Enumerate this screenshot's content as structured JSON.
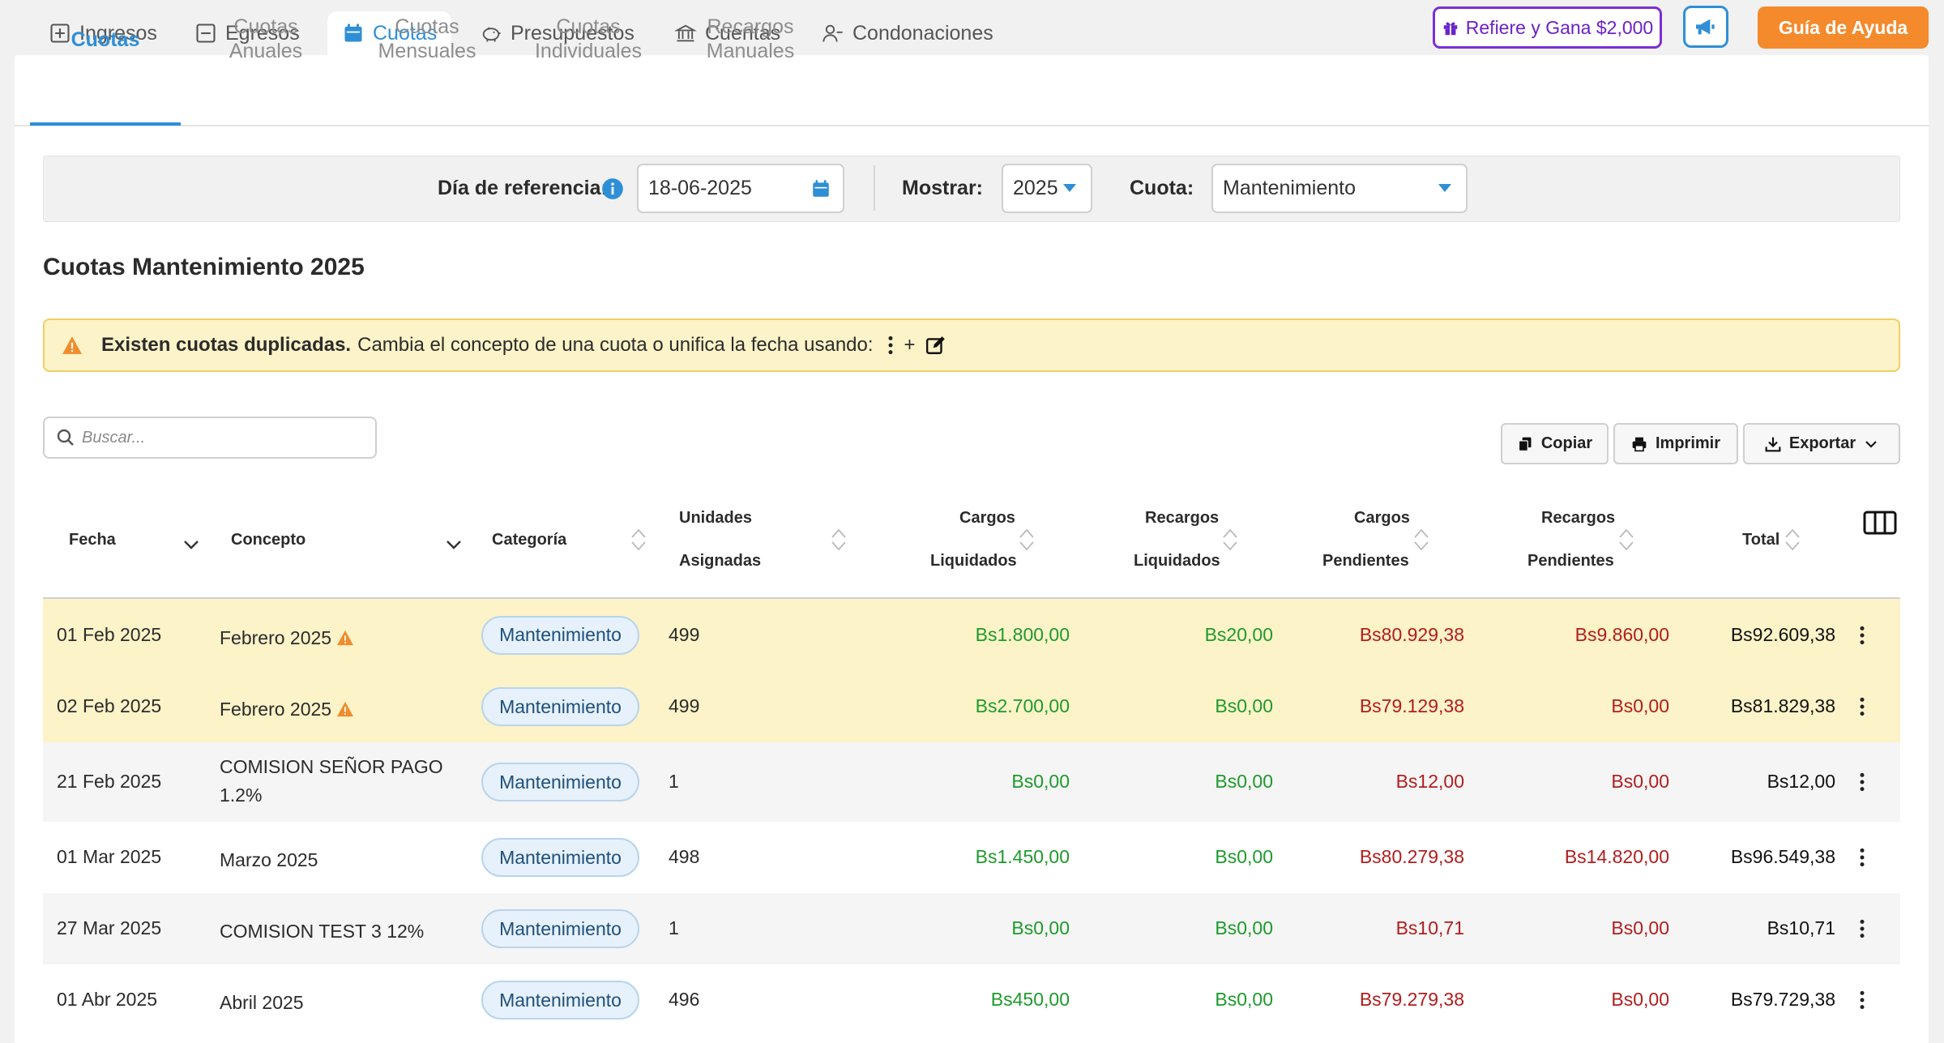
{
  "topnav": {
    "tabs": [
      {
        "label": "Ingresos",
        "icon": "plus-square-icon"
      },
      {
        "label": "Egresos",
        "icon": "minus-square-icon"
      },
      {
        "label": "Cuotas",
        "icon": "calendar-icon"
      },
      {
        "label": "Presupuestos",
        "icon": "piggy-bank-icon"
      },
      {
        "label": "Cuentas",
        "icon": "bank-icon"
      },
      {
        "label": "Condonaciones",
        "icon": "user-minus-icon"
      }
    ],
    "active_tab": "Cuotas",
    "refer_label": "Refiere y Gana $2,000",
    "guide_label": "Guía de Ayuda"
  },
  "subtabs": [
    {
      "line1": "Cuotas",
      "line2": ""
    },
    {
      "line1": "Cuotas",
      "line2": "Anuales"
    },
    {
      "line1": "Cuotas",
      "line2": "Mensuales"
    },
    {
      "line1": "Cuotas",
      "line2": "Individuales"
    },
    {
      "line1": "Recargos",
      "line2": "Manuales"
    }
  ],
  "filters": {
    "reference_label": "Día de referencia:",
    "reference_value": "18-06-2025",
    "show_label": "Mostrar:",
    "show_value": "2025",
    "cuota_label": "Cuota:",
    "cuota_value": "Mantenimiento"
  },
  "title": "Cuotas Mantenimiento 2025",
  "alert": {
    "bold": "Existen cuotas duplicadas.",
    "text": "Cambia el concepto de una cuota o unifica la fecha usando:",
    "plus": "+"
  },
  "search": {
    "placeholder": "Buscar..."
  },
  "actions": {
    "copy": "Copiar",
    "print": "Imprimir",
    "export": "Exportar"
  },
  "table": {
    "headers": {
      "fecha": "Fecha",
      "concepto": "Concepto",
      "categoria": "Categoría",
      "unidades_1": "Unidades",
      "unidades_2": "Asignadas",
      "cargos_liq_1": "Cargos",
      "cargos_liq_2": "Liquidados",
      "recargos_liq_1": "Recargos",
      "recargos_liq_2": "Liquidados",
      "cargos_pen_1": "Cargos",
      "cargos_pen_2": "Pendientes",
      "recargos_pen_1": "Recargos",
      "recargos_pen_2": "Pendientes",
      "total": "Total"
    },
    "rows": [
      {
        "fecha": "01 Feb 2025",
        "concepto": "Febrero 2025",
        "concepto2": "",
        "duplicate": true,
        "categoria": "Mantenimiento",
        "unidades": "499",
        "cargos_liq": "Bs1.800,00",
        "recargos_liq": "Bs20,00",
        "cargos_pen": "Bs80.929,38",
        "recargos_pen": "Bs9.860,00",
        "total": "Bs92.609,38"
      },
      {
        "fecha": "02 Feb 2025",
        "concepto": "Febrero 2025",
        "concepto2": "",
        "duplicate": true,
        "categoria": "Mantenimiento",
        "unidades": "499",
        "cargos_liq": "Bs2.700,00",
        "recargos_liq": "Bs0,00",
        "cargos_pen": "Bs79.129,38",
        "recargos_pen": "Bs0,00",
        "total": "Bs81.829,38"
      },
      {
        "fecha": "21 Feb 2025",
        "concepto": "COMISION SEÑOR PAGO",
        "concepto2": "1.2%",
        "duplicate": false,
        "categoria": "Mantenimiento",
        "unidades": "1",
        "cargos_liq": "Bs0,00",
        "recargos_liq": "Bs0,00",
        "cargos_pen": "Bs12,00",
        "recargos_pen": "Bs0,00",
        "total": "Bs12,00"
      },
      {
        "fecha": "01 Mar 2025",
        "concepto": "Marzo 2025",
        "concepto2": "",
        "duplicate": false,
        "categoria": "Mantenimiento",
        "unidades": "498",
        "cargos_liq": "Bs1.450,00",
        "recargos_liq": "Bs0,00",
        "cargos_pen": "Bs80.279,38",
        "recargos_pen": "Bs14.820,00",
        "total": "Bs96.549,38"
      },
      {
        "fecha": "27 Mar 2025",
        "concepto": "COMISION TEST 3 12%",
        "concepto2": "",
        "duplicate": false,
        "categoria": "Mantenimiento",
        "unidades": "1",
        "cargos_liq": "Bs0,00",
        "recargos_liq": "Bs0,00",
        "cargos_pen": "Bs10,71",
        "recargos_pen": "Bs0,00",
        "total": "Bs10,71"
      },
      {
        "fecha": "01 Abr 2025",
        "concepto": "Abril 2025",
        "concepto2": "",
        "duplicate": false,
        "categoria": "Mantenimiento",
        "unidades": "496",
        "cargos_liq": "Bs450,00",
        "recargos_liq": "Bs0,00",
        "cargos_pen": "Bs79.279,38",
        "recargos_pen": "Bs0,00",
        "total": "Bs79.729,38"
      }
    ]
  },
  "colors": {
    "accent": "#2f8fd6",
    "refer": "#7b2fd6",
    "guide": "#f48a2c",
    "liquidated": "#1e9a2c",
    "pending": "#b21d1d",
    "duplicate_bg": "#fcf3c8"
  }
}
